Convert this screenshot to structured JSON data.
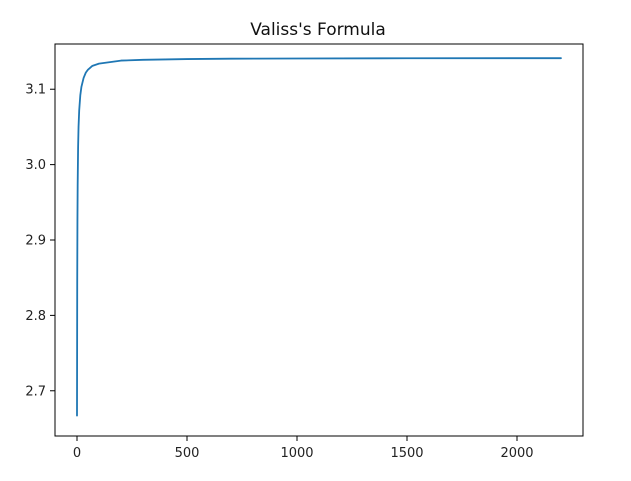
{
  "chart_data": {
    "type": "line",
    "title": "Valiss's Formula",
    "xlabel": "",
    "ylabel": "",
    "xlim": [
      -100,
      2300
    ],
    "ylim": [
      2.64,
      3.16
    ],
    "xticks": [
      0,
      500,
      1000,
      1500,
      2000
    ],
    "yticks": [
      2.7,
      2.8,
      2.9,
      3.0,
      3.1
    ],
    "xtick_labels": [
      "0",
      "500",
      "1000",
      "1500",
      "2000"
    ],
    "ytick_labels": [
      "2.7",
      "2.8",
      "2.9",
      "3.0",
      "3.1"
    ],
    "grid": false,
    "legend": "none",
    "series": [
      {
        "color": "#1f77b4",
        "x": [
          0,
          1,
          2,
          3,
          5,
          7,
          10,
          15,
          20,
          30,
          40,
          50,
          70,
          100,
          150,
          200,
          300,
          500,
          700,
          1000,
          1500,
          2000,
          2200
        ],
        "y": [
          2.667,
          2.844,
          2.926,
          2.972,
          3.023,
          3.05,
          3.072,
          3.092,
          3.103,
          3.115,
          3.122,
          3.126,
          3.131,
          3.134,
          3.136,
          3.138,
          3.139,
          3.14,
          3.1405,
          3.1408,
          3.1411,
          3.1412,
          3.1412
        ]
      }
    ]
  }
}
